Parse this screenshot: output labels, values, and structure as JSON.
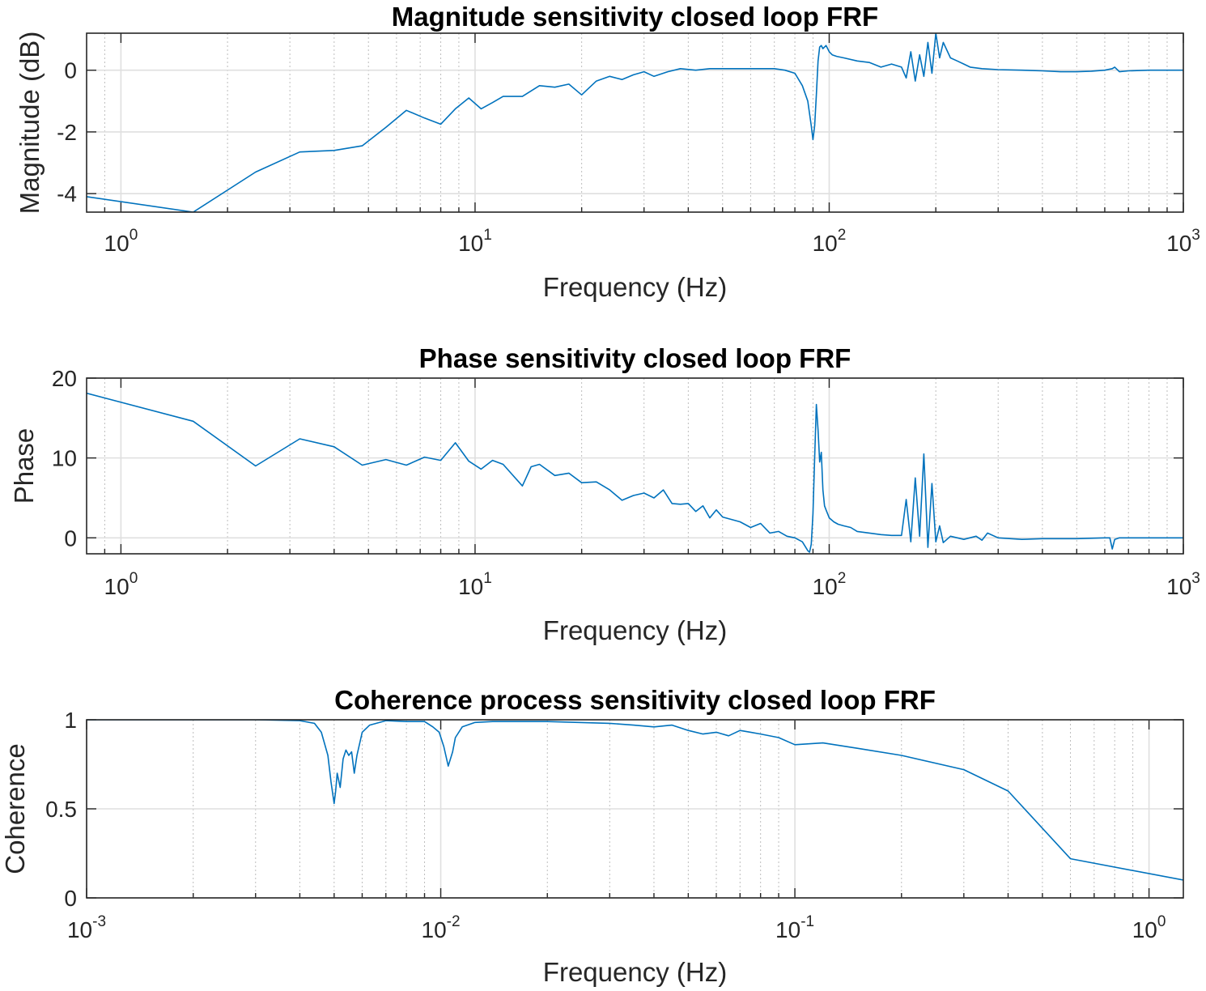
{
  "chart_data": [
    {
      "type": "line",
      "title": "Magnitude sensitivity closed loop FRF",
      "xlabel": "Frequency (Hz)",
      "ylabel": "Magnitude (dB)",
      "xscale": "log",
      "xlim": [
        0.8,
        1000
      ],
      "ylim": [
        -4.6,
        1.2
      ],
      "xticks": [
        {
          "base": "10",
          "exp": "0",
          "value": 1
        },
        {
          "base": "10",
          "exp": "1",
          "value": 10
        },
        {
          "base": "10",
          "exp": "2",
          "value": 100
        },
        {
          "base": "10",
          "exp": "3",
          "value": 1000
        }
      ],
      "yticks": [
        {
          "label": "-4",
          "value": -4
        },
        {
          "label": "-2",
          "value": -2
        },
        {
          "label": "0",
          "value": 0
        }
      ],
      "grid": true,
      "series": [
        {
          "color": "#0072BD",
          "x": [
            0.8,
            1.6,
            2.4,
            3.2,
            4.0,
            4.8,
            5.6,
            6.4,
            7.2,
            8.0,
            8.8,
            9.6,
            10.4,
            11.2,
            12,
            13.6,
            15.2,
            16.8,
            18.4,
            20,
            22,
            24,
            26,
            28,
            30,
            32,
            35,
            38,
            42,
            46,
            50,
            55,
            60,
            65,
            70,
            75,
            80,
            84,
            87,
            89,
            90,
            91,
            92,
            93,
            94,
            95,
            96,
            98,
            100,
            102,
            105,
            110,
            120,
            130,
            140,
            150,
            160,
            165,
            170,
            175,
            180,
            185,
            190,
            195,
            200,
            205,
            210,
            220,
            230,
            240,
            250,
            270,
            300,
            350,
            400,
            450,
            500,
            550,
            600,
            630,
            640,
            660,
            700,
            800,
            900,
            1000
          ],
          "y": [
            -4.1,
            -4.6,
            -3.3,
            -2.65,
            -2.6,
            -2.45,
            -1.85,
            -1.3,
            -1.55,
            -1.75,
            -1.25,
            -0.9,
            -1.25,
            -1.05,
            -0.85,
            -0.85,
            -0.5,
            -0.55,
            -0.45,
            -0.8,
            -0.35,
            -0.2,
            -0.3,
            -0.15,
            -0.05,
            -0.2,
            -0.05,
            0.05,
            0,
            0.05,
            0.05,
            0.05,
            0.05,
            0.05,
            0.05,
            0,
            -0.1,
            -0.5,
            -1.0,
            -1.8,
            -2.25,
            -1.8,
            -0.8,
            0.3,
            0.75,
            0.8,
            0.7,
            0.8,
            0.6,
            0.5,
            0.45,
            0.4,
            0.3,
            0.25,
            0.1,
            0.2,
            0.1,
            -0.25,
            0.6,
            -0.35,
            0.5,
            -0.2,
            0.9,
            -0.1,
            1.2,
            0.4,
            0.9,
            0.4,
            0.3,
            0.2,
            0.1,
            0.05,
            0.02,
            0.0,
            -0.02,
            -0.05,
            -0.05,
            -0.03,
            0.0,
            0.05,
            0.1,
            -0.05,
            -0.02,
            0.0,
            0.0,
            0.0
          ]
        }
      ]
    },
    {
      "type": "line",
      "title": "Phase sensitivity closed loop FRF",
      "xlabel": "Frequency (Hz)",
      "ylabel": "Phase",
      "xscale": "log",
      "xlim": [
        0.8,
        1000
      ],
      "ylim": [
        -2,
        20
      ],
      "xticks": [
        {
          "base": "10",
          "exp": "0",
          "value": 1
        },
        {
          "base": "10",
          "exp": "1",
          "value": 10
        },
        {
          "base": "10",
          "exp": "2",
          "value": 100
        },
        {
          "base": "10",
          "exp": "3",
          "value": 1000
        }
      ],
      "yticks": [
        {
          "label": "0",
          "value": 0
        },
        {
          "label": "10",
          "value": 10
        },
        {
          "label": "20",
          "value": 20
        }
      ],
      "grid": true,
      "series": [
        {
          "color": "#0072BD",
          "x": [
            0.8,
            1.6,
            2.4,
            3.2,
            4.0,
            4.8,
            5.6,
            6.4,
            7.2,
            8.0,
            8.8,
            9.6,
            10.4,
            11.2,
            12,
            13.6,
            14.4,
            15.2,
            16.8,
            18.4,
            20,
            22,
            24,
            26,
            28,
            30,
            32,
            34,
            36,
            38,
            40,
            42,
            44,
            46,
            48,
            50,
            53,
            56,
            60,
            64,
            68,
            72,
            76,
            80,
            84,
            87,
            88,
            89,
            90,
            91,
            92,
            93,
            94,
            95,
            96,
            97,
            98,
            100,
            103,
            106,
            110,
            115,
            120,
            130,
            140,
            150,
            160,
            165,
            170,
            175,
            180,
            185,
            190,
            195,
            200,
            205,
            210,
            220,
            240,
            260,
            270,
            280,
            300,
            350,
            400,
            500,
            600,
            620,
            630,
            640,
            660,
            700,
            800,
            1000
          ],
          "y": [
            18.1,
            14.6,
            9.0,
            12.4,
            11.4,
            9.1,
            9.8,
            9.1,
            10.1,
            9.7,
            11.9,
            9.6,
            8.6,
            9.7,
            9.2,
            6.5,
            8.9,
            9.2,
            7.8,
            8.1,
            6.9,
            7.0,
            6.0,
            4.7,
            5.3,
            5.6,
            5.0,
            6.0,
            4.3,
            4.2,
            4.3,
            3.3,
            4.0,
            2.5,
            3.5,
            2.6,
            2.3,
            2.0,
            1.3,
            1.8,
            0.6,
            0.8,
            0.2,
            0.0,
            -0.5,
            -1.6,
            -1.8,
            -0.8,
            3.0,
            10.0,
            16.7,
            13.5,
            9.5,
            10.7,
            6.0,
            4.0,
            3.5,
            2.5,
            2.0,
            1.7,
            1.5,
            1.3,
            0.8,
            0.6,
            0.4,
            0.3,
            0.3,
            4.8,
            -0.5,
            7.5,
            0.2,
            10.5,
            -1.2,
            6.8,
            -0.5,
            1.5,
            -0.6,
            0.2,
            -0.2,
            0.2,
            -0.3,
            0.6,
            0.0,
            -0.2,
            -0.1,
            -0.1,
            0.0,
            0.0,
            -1.4,
            -0.2,
            0.0,
            0.0,
            0.0,
            0.0
          ]
        }
      ]
    },
    {
      "type": "line",
      "title": "Coherence process sensitivity closed loop FRF",
      "xlabel": "Frequency (Hz)",
      "ylabel": "Coherence",
      "xscale": "log",
      "xlim": [
        0.001,
        1.25
      ],
      "ylim": [
        0,
        1
      ],
      "xticks": [
        {
          "base": "10",
          "exp": "-3",
          "value": 0.001
        },
        {
          "base": "10",
          "exp": "-2",
          "value": 0.01
        },
        {
          "base": "10",
          "exp": "-1",
          "value": 0.1
        },
        {
          "base": "10",
          "exp": "0",
          "value": 1
        }
      ],
      "yticks": [
        {
          "label": "0",
          "value": 0
        },
        {
          "label": "0.5",
          "value": 0.5
        },
        {
          "label": "1",
          "value": 1
        }
      ],
      "grid": true,
      "series": [
        {
          "color": "#0072BD",
          "x": [
            0.001,
            0.002,
            0.003,
            0.004,
            0.0044,
            0.0046,
            0.0048,
            0.0049,
            0.005,
            0.00505,
            0.0051,
            0.0052,
            0.0053,
            0.0054,
            0.0055,
            0.0056,
            0.0057,
            0.0058,
            0.006,
            0.0063,
            0.007,
            0.008,
            0.009,
            0.0095,
            0.0099,
            0.0102,
            0.0105,
            0.0108,
            0.011,
            0.0115,
            0.0125,
            0.014,
            0.02,
            0.03,
            0.035,
            0.04,
            0.045,
            0.05,
            0.055,
            0.06,
            0.065,
            0.07,
            0.075,
            0.08,
            0.09,
            0.1,
            0.12,
            0.15,
            0.2,
            0.3,
            0.4,
            0.6,
            1.25
          ],
          "y": [
            1.0,
            1.0,
            1.0,
            0.995,
            0.98,
            0.93,
            0.8,
            0.65,
            0.53,
            0.6,
            0.7,
            0.62,
            0.78,
            0.83,
            0.8,
            0.82,
            0.7,
            0.8,
            0.93,
            0.97,
            0.995,
            0.99,
            0.99,
            0.96,
            0.93,
            0.85,
            0.74,
            0.82,
            0.9,
            0.96,
            0.985,
            0.99,
            0.99,
            0.98,
            0.97,
            0.96,
            0.97,
            0.94,
            0.92,
            0.93,
            0.91,
            0.94,
            0.93,
            0.92,
            0.9,
            0.86,
            0.87,
            0.84,
            0.8,
            0.72,
            0.6,
            0.22,
            0.1
          ]
        }
      ]
    }
  ]
}
